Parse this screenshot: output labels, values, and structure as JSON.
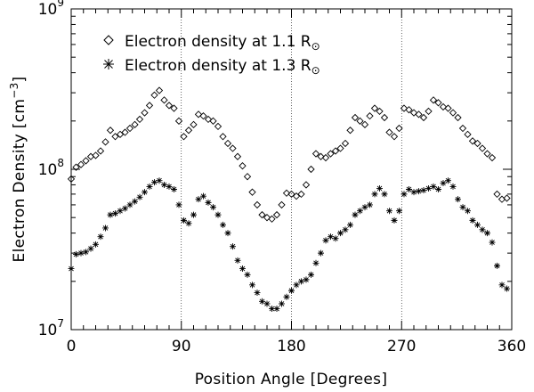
{
  "chart_data": {
    "type": "scatter",
    "title": "",
    "xlabel": "Position Angle [Degrees]",
    "ylabel_main": "Electron Density [cm",
    "ylabel_exp": "−3",
    "ylabel_tail": "]",
    "yscale": "log",
    "xlim": [
      0,
      360
    ],
    "ylim": [
      10000000,
      1000000000
    ],
    "x_tick_labels": [
      "0",
      "90",
      "180",
      "270",
      "360"
    ],
    "y_tick_labels": [
      {
        "base": "10",
        "exp": "7"
      },
      {
        "base": "10",
        "exp": "8"
      },
      {
        "base": "10",
        "exp": "9"
      }
    ],
    "vertical_reference_lines": [
      90,
      180,
      270
    ],
    "series": [
      {
        "name": "Electron density at 1.1 R",
        "name_sub": "⊙",
        "marker": "diamond",
        "x": [
          0,
          4,
          8,
          12,
          16,
          20,
          24,
          28,
          32,
          36,
          40,
          44,
          48,
          52,
          56,
          60,
          64,
          68,
          72,
          76,
          80,
          84,
          88,
          92,
          96,
          100,
          104,
          108,
          112,
          116,
          120,
          124,
          128,
          132,
          136,
          140,
          144,
          148,
          152,
          156,
          160,
          164,
          168,
          172,
          176,
          180,
          184,
          188,
          192,
          196,
          200,
          204,
          208,
          212,
          216,
          220,
          224,
          228,
          232,
          236,
          240,
          244,
          248,
          252,
          256,
          260,
          264,
          268,
          272,
          276,
          280,
          284,
          288,
          292,
          296,
          300,
          304,
          308,
          312,
          316,
          320,
          324,
          328,
          332,
          336,
          340,
          344,
          348,
          352,
          356
        ],
        "y": [
          87000000,
          103000000,
          107000000,
          113000000,
          120000000,
          122000000,
          130000000,
          148000000,
          175000000,
          160000000,
          165000000,
          170000000,
          180000000,
          190000000,
          205000000,
          225000000,
          250000000,
          290000000,
          310000000,
          270000000,
          250000000,
          240000000,
          200000000,
          160000000,
          175000000,
          190000000,
          220000000,
          215000000,
          205000000,
          200000000,
          185000000,
          160000000,
          145000000,
          135000000,
          120000000,
          105000000,
          90000000,
          72000000,
          60000000,
          52000000,
          50000000,
          49000000,
          52000000,
          60000000,
          71000000,
          70000000,
          68000000,
          70000000,
          80000000,
          100000000,
          125000000,
          120000000,
          118000000,
          125000000,
          130000000,
          135000000,
          145000000,
          175000000,
          210000000,
          200000000,
          190000000,
          215000000,
          240000000,
          230000000,
          210000000,
          170000000,
          160000000,
          180000000,
          240000000,
          235000000,
          225000000,
          220000000,
          210000000,
          230000000,
          270000000,
          260000000,
          245000000,
          240000000,
          225000000,
          210000000,
          180000000,
          165000000,
          150000000,
          145000000,
          135000000,
          125000000,
          118000000,
          70000000,
          65000000,
          66000000
        ]
      },
      {
        "name": "Electron density at 1.3 R",
        "name_sub": "⊙",
        "marker": "asterisk",
        "x": [
          0,
          4,
          8,
          12,
          16,
          20,
          24,
          28,
          32,
          36,
          40,
          44,
          48,
          52,
          56,
          60,
          64,
          68,
          72,
          76,
          80,
          84,
          88,
          92,
          96,
          100,
          104,
          108,
          112,
          116,
          120,
          124,
          128,
          132,
          136,
          140,
          144,
          148,
          152,
          156,
          160,
          164,
          168,
          172,
          176,
          180,
          184,
          188,
          192,
          196,
          200,
          204,
          208,
          212,
          216,
          220,
          224,
          228,
          232,
          236,
          240,
          244,
          248,
          252,
          256,
          260,
          264,
          268,
          272,
          276,
          280,
          284,
          288,
          292,
          296,
          300,
          304,
          308,
          312,
          316,
          320,
          324,
          328,
          332,
          336,
          340,
          344,
          348,
          352,
          356
        ],
        "y": [
          24000000,
          29500000,
          30000000,
          30500000,
          32000000,
          34000000,
          38000000,
          43000000,
          52000000,
          53000000,
          55000000,
          57000000,
          60000000,
          63000000,
          67000000,
          72000000,
          78000000,
          83000000,
          85000000,
          80000000,
          78000000,
          75000000,
          60000000,
          48000000,
          46000000,
          52000000,
          65000000,
          68000000,
          62000000,
          58000000,
          52000000,
          45000000,
          40000000,
          33000000,
          27000000,
          24000000,
          22000000,
          19000000,
          17000000,
          15000000,
          14500000,
          13500000,
          13500000,
          14500000,
          16000000,
          17500000,
          19000000,
          20000000,
          20500000,
          22000000,
          26000000,
          30000000,
          36000000,
          38000000,
          37000000,
          40000000,
          42000000,
          45000000,
          52000000,
          55000000,
          58000000,
          60000000,
          70000000,
          76000000,
          70000000,
          55000000,
          48000000,
          55000000,
          70000000,
          75000000,
          72000000,
          73000000,
          74000000,
          76000000,
          78000000,
          75000000,
          82000000,
          85000000,
          78000000,
          65000000,
          58000000,
          55000000,
          48000000,
          45000000,
          42000000,
          40000000,
          35000000,
          25000000,
          19000000,
          18000000
        ]
      }
    ],
    "legend_position": "top-left"
  }
}
